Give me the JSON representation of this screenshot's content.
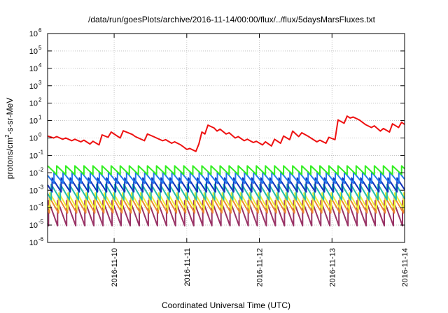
{
  "chart_data": {
    "type": "line",
    "title": "/data/run/goesPlots/archive/2016-11-14/00:00/flux/../flux/5daysMarsFluxes.txt",
    "xlabel": "Coordinated Universal Time (UTC)",
    "ylabel": "protons/cm²-s-sr-MeV",
    "ylabel_parts": [
      "protons/cm",
      "2",
      "-s-sr-MeV"
    ],
    "yscale": "log",
    "ylim": [
      1e-06,
      1000000.0
    ],
    "xlim": [
      "2016-11-09T02:00",
      "2016-11-14T00:00"
    ],
    "grid": true,
    "legend": "none",
    "x_ticks": [
      {
        "value": "2016-11-10",
        "label": "2016-11-10"
      },
      {
        "value": "2016-11-11",
        "label": "2016-11-11"
      },
      {
        "value": "2016-11-12",
        "label": "2016-11-12"
      },
      {
        "value": "2016-11-13",
        "label": "2016-11-13"
      },
      {
        "value": "2016-11-14",
        "label": "2016-11-14"
      }
    ],
    "y_ticks": [
      {
        "value": 1e-06,
        "base": "10",
        "exp": "-6"
      },
      {
        "value": 1e-05,
        "base": "10",
        "exp": "-5"
      },
      {
        "value": 0.0001,
        "base": "10",
        "exp": "-4"
      },
      {
        "value": 0.001,
        "base": "10",
        "exp": "-3"
      },
      {
        "value": 0.01,
        "base": "10",
        "exp": "-2"
      },
      {
        "value": 0.1,
        "base": "10",
        "exp": "-1"
      },
      {
        "value": 1,
        "base": "10",
        "exp": "0"
      },
      {
        "value": 10,
        "base": "10",
        "exp": "1"
      },
      {
        "value": 100,
        "base": "10",
        "exp": "2"
      },
      {
        "value": 1000,
        "base": "10",
        "exp": "3"
      },
      {
        "value": 10000,
        "base": "10",
        "exp": "4"
      },
      {
        "value": 100000,
        "base": "10",
        "exp": "5"
      },
      {
        "value": 1000000,
        "base": "10",
        "exp": "6"
      }
    ],
    "series": [
      {
        "color": "#ee1111",
        "width": 2,
        "values": [
          [
            "2016-11-09T02:00",
            1.3
          ],
          [
            "2016-11-09T04:00",
            1.0
          ],
          [
            "2016-11-09T05:00",
            1.2
          ],
          [
            "2016-11-09T07:00",
            0.85
          ],
          [
            "2016-11-09T08:00",
            1.0
          ],
          [
            "2016-11-09T10:00",
            0.7
          ],
          [
            "2016-11-09T11:00",
            0.85
          ],
          [
            "2016-11-09T13:00",
            0.6
          ],
          [
            "2016-11-09T14:00",
            0.75
          ],
          [
            "2016-11-09T16:00",
            0.45
          ],
          [
            "2016-11-09T17:00",
            0.65
          ],
          [
            "2016-11-09T19:00",
            0.4
          ],
          [
            "2016-11-09T20:00",
            1.5
          ],
          [
            "2016-11-09T22:00",
            1.1
          ],
          [
            "2016-11-09T23:00",
            2.2
          ],
          [
            "2016-11-10T02:00",
            1.0
          ],
          [
            "2016-11-10T03:00",
            2.6
          ],
          [
            "2016-11-10T06:00",
            1.6
          ],
          [
            "2016-11-10T07:00",
            1.2
          ],
          [
            "2016-11-10T10:00",
            0.7
          ],
          [
            "2016-11-10T11:00",
            1.7
          ],
          [
            "2016-11-10T13:00",
            1.2
          ],
          [
            "2016-11-10T14:00",
            1.0
          ],
          [
            "2016-11-10T16:00",
            0.7
          ],
          [
            "2016-11-10T17:00",
            0.8
          ],
          [
            "2016-11-10T19:00",
            0.5
          ],
          [
            "2016-11-10T20:00",
            0.6
          ],
          [
            "2016-11-10T22:00",
            0.4
          ],
          [
            "2016-11-10T23:00",
            0.3
          ],
          [
            "2016-11-11T00:00",
            0.22
          ],
          [
            "2016-11-11T01:00",
            0.25
          ],
          [
            "2016-11-11T03:00",
            0.17
          ],
          [
            "2016-11-11T04:00",
            0.45
          ],
          [
            "2016-11-11T05:00",
            2.2
          ],
          [
            "2016-11-11T06:00",
            1.7
          ],
          [
            "2016-11-11T07:00",
            5.5
          ],
          [
            "2016-11-11T09:00",
            3.8
          ],
          [
            "2016-11-11T10:00",
            2.5
          ],
          [
            "2016-11-11T11:00",
            3.2
          ],
          [
            "2016-11-11T13:00",
            1.7
          ],
          [
            "2016-11-11T14:00",
            2.0
          ],
          [
            "2016-11-11T16:00",
            1.0
          ],
          [
            "2016-11-11T17:00",
            1.2
          ],
          [
            "2016-11-11T19:00",
            0.7
          ],
          [
            "2016-11-11T20:00",
            0.85
          ],
          [
            "2016-11-11T22:00",
            0.55
          ],
          [
            "2016-11-11T23:00",
            0.65
          ],
          [
            "2016-11-12T01:00",
            0.4
          ],
          [
            "2016-11-12T02:00",
            0.6
          ],
          [
            "2016-11-12T04:00",
            0.35
          ],
          [
            "2016-11-12T05:00",
            0.85
          ],
          [
            "2016-11-12T07:00",
            0.5
          ],
          [
            "2016-11-12T08:00",
            1.3
          ],
          [
            "2016-11-12T10:00",
            0.8
          ],
          [
            "2016-11-12T11:00",
            2.5
          ],
          [
            "2016-11-12T13:00",
            1.2
          ],
          [
            "2016-11-12T14:00",
            2.0
          ],
          [
            "2016-11-12T16:00",
            1.3
          ],
          [
            "2016-11-12T17:00",
            1.0
          ],
          [
            "2016-11-12T19:00",
            0.6
          ],
          [
            "2016-11-12T20:00",
            0.75
          ],
          [
            "2016-11-12T22:00",
            0.5
          ],
          [
            "2016-11-12T23:00",
            1.1
          ],
          [
            "2016-11-13T01:00",
            0.8
          ],
          [
            "2016-11-13T02:00",
            11.0
          ],
          [
            "2016-11-13T04:00",
            7.0
          ],
          [
            "2016-11-13T05:00",
            18.0
          ],
          [
            "2016-11-13T06:00",
            14.0
          ],
          [
            "2016-11-13T07:00",
            16.0
          ],
          [
            "2016-11-13T09:00",
            11.0
          ],
          [
            "2016-11-13T11:00",
            6.0
          ],
          [
            "2016-11-13T13:00",
            4.0
          ],
          [
            "2016-11-13T14:00",
            5.0
          ],
          [
            "2016-11-13T16:00",
            2.5
          ],
          [
            "2016-11-13T17:00",
            3.5
          ],
          [
            "2016-11-13T19:00",
            2.2
          ],
          [
            "2016-11-13T20:00",
            6.5
          ],
          [
            "2016-11-13T22:00",
            4.0
          ],
          [
            "2016-11-13T23:00",
            8.0
          ],
          [
            "2016-11-14T00:00",
            6.0
          ]
        ]
      },
      {
        "color": "#33ee22",
        "width": 2,
        "base": 0.008,
        "peak": 0.025,
        "phase": 0.0
      },
      {
        "color": "#2277ee",
        "width": 2,
        "base": 0.0025,
        "peak": 0.011,
        "phase": 0.3
      },
      {
        "color": "#1133bb",
        "width": 2,
        "base": 0.0008,
        "peak": 0.005,
        "phase": 0.5
      },
      {
        "color": "#22bbaa",
        "width": 2,
        "base": 0.00028,
        "peak": 0.0022,
        "phase": 0.6
      },
      {
        "color": "#eeee33",
        "width": 2,
        "base": 8e-05,
        "peak": 0.0007,
        "phase": 0.75
      },
      {
        "color": "#ee8833",
        "width": 2,
        "base": 5e-05,
        "peak": 0.0004,
        "phase": 0.8
      },
      {
        "color": "#993366",
        "width": 2,
        "base": 9e-06,
        "peak": 0.00025,
        "phase": 0.9
      }
    ]
  }
}
